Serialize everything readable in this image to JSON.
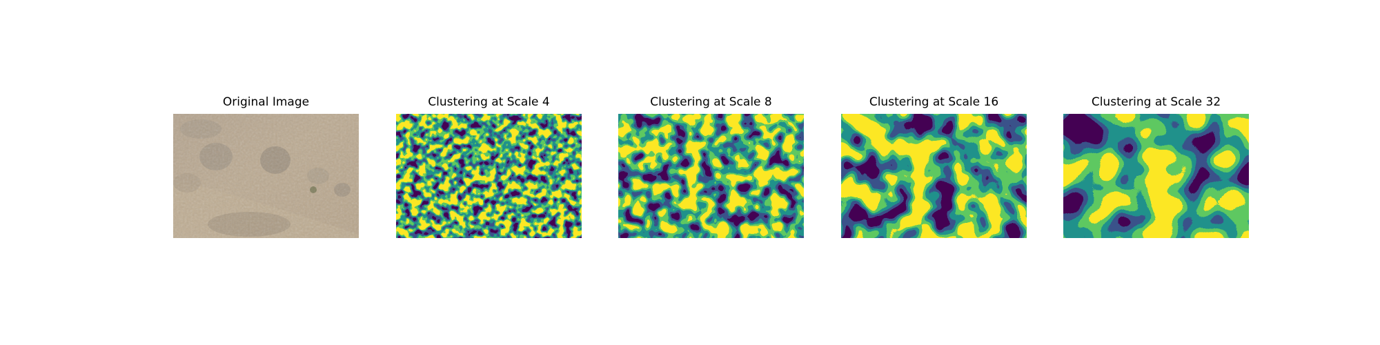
{
  "figure": {
    "panels": [
      {
        "id": "original",
        "title": "Original Image",
        "kind": "photo"
      },
      {
        "id": "scale4",
        "title": "Clustering at Scale 4",
        "kind": "clusters"
      },
      {
        "id": "scale8",
        "title": "Clustering at Scale 8",
        "kind": "clusters"
      },
      {
        "id": "scale16",
        "title": "Clustering at Scale 16",
        "kind": "clusters"
      },
      {
        "id": "scale32",
        "title": "Clustering at Scale 32",
        "kind": "clusters"
      }
    ],
    "colormap": [
      "#440154",
      "#3b528b",
      "#21918c",
      "#5ec962",
      "#fde725"
    ],
    "photo_colors": {
      "ground": "#b7a58e",
      "dry_grass": "#c9b89c",
      "shrub": "#8c8476",
      "shadow": "#7a7266"
    }
  }
}
